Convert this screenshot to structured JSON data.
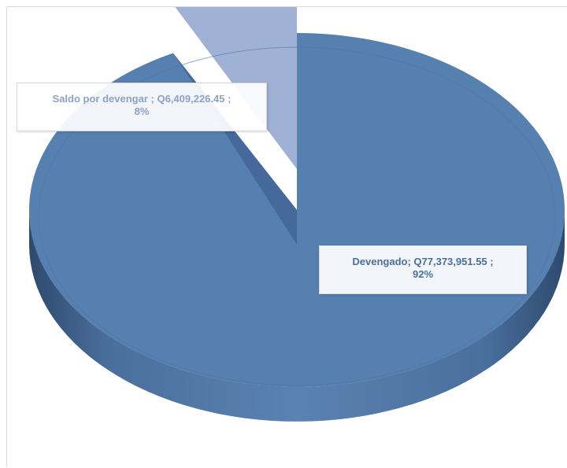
{
  "chart_data": {
    "type": "pie",
    "title": "",
    "slices": [
      {
        "category": "Saldo por devengar",
        "amount_label": "Q6,409,226.45",
        "value": 6409226.45,
        "percent_label": "8%",
        "color": "#9fb1d4"
      },
      {
        "category": "Devengado",
        "amount_label": "Q77,373,951.55",
        "value": 77373951.55,
        "percent_label": "92%",
        "color": "#5680b0"
      }
    ],
    "style": "3d-tilted",
    "legend": "none"
  }
}
